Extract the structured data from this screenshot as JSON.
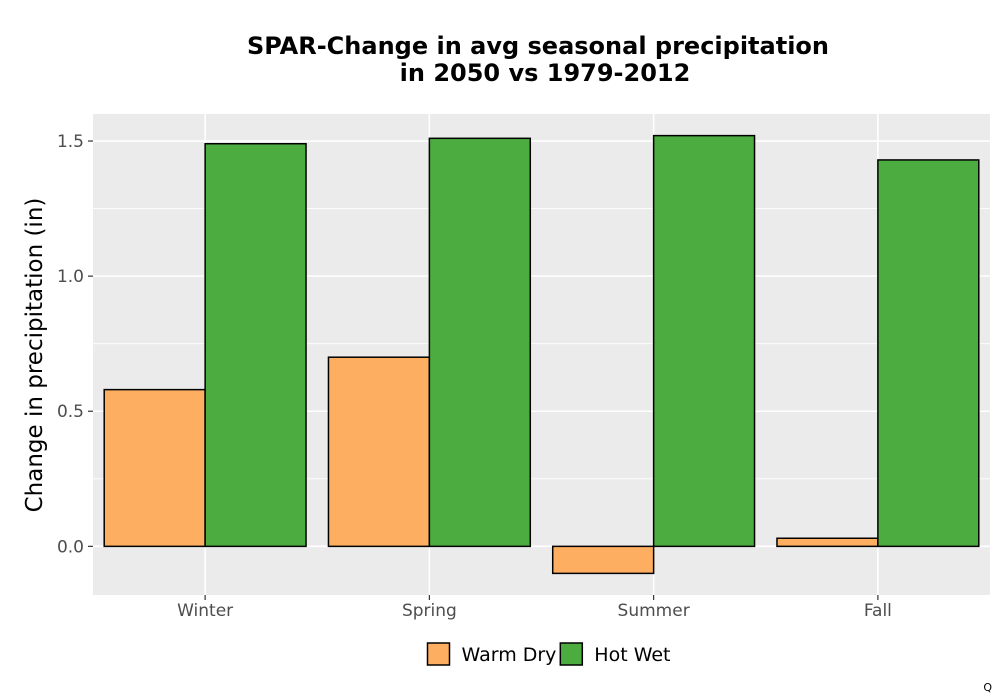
{
  "chart_data": {
    "type": "bar",
    "title_lines": [
      "SPAR-Change in avg seasonal precipitation",
      "in 2050 vs 1979-2012"
    ],
    "xlabel": "",
    "ylabel": "Change in precipitation (in)",
    "categories": [
      "Winter",
      "Spring",
      "Summer",
      "Fall"
    ],
    "series": [
      {
        "name": "Warm Dry",
        "color": "#FDAE61",
        "values": [
          0.58,
          0.7,
          -0.1,
          0.03
        ]
      },
      {
        "name": "Hot Wet",
        "color": "#4DAC3F",
        "values": [
          1.49,
          1.51,
          1.52,
          1.43
        ]
      }
    ],
    "ylim": [
      -0.18,
      1.6
    ],
    "yticks": [
      0.0,
      0.5,
      1.0,
      1.5
    ],
    "ytick_labels": [
      "0.0",
      "0.5",
      "1.0",
      "1.5"
    ],
    "grid": true,
    "legend_position": "bottom",
    "panel_background": "#EBEBEB"
  },
  "corner_mark": "Q"
}
